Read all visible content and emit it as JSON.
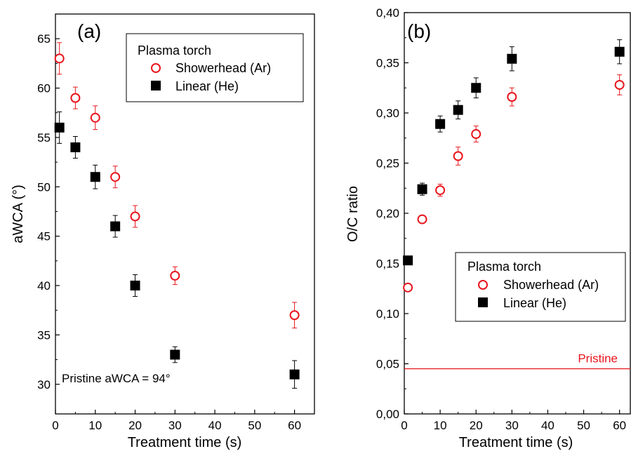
{
  "chart_data": [
    {
      "panel_label": "(a)",
      "type": "scatter",
      "xlabel": "Treatment time (s)",
      "ylabel": "aWCA (°)",
      "xlim": [
        0,
        65
      ],
      "ylim": [
        27,
        67.5
      ],
      "xticks": [
        "0",
        "10",
        "20",
        "30",
        "40",
        "50",
        "60"
      ],
      "yticks": [
        "30",
        "35",
        "40",
        "45",
        "50",
        "55",
        "60",
        "65"
      ],
      "legend": {
        "title": "Plasma torch",
        "position": "top-right",
        "entries": [
          "Showerhead (Ar)",
          "Linear (He)"
        ]
      },
      "annotation": "Pristine aWCA = 94°",
      "series": [
        {
          "name": "Showerhead (Ar)",
          "marker": "open-circle",
          "color": "#e8161d",
          "x": [
            1,
            5,
            10,
            15,
            20,
            30,
            60
          ],
          "y": [
            63,
            59,
            57,
            51,
            47,
            41,
            37
          ],
          "err": [
            1.6,
            1.1,
            1.2,
            1.1,
            1.1,
            0.9,
            1.3
          ]
        },
        {
          "name": "Linear (He)",
          "marker": "filled-square",
          "color": "#000000",
          "x": [
            1,
            5,
            10,
            15,
            20,
            30,
            60
          ],
          "y": [
            56,
            54,
            51,
            46,
            40,
            33,
            31
          ],
          "err": [
            1.6,
            1.1,
            1.2,
            1.1,
            1.1,
            0.8,
            1.4
          ]
        }
      ]
    },
    {
      "panel_label": "(b)",
      "type": "scatter",
      "xlabel": "Treatment time (s)",
      "ylabel": "O/C ratio",
      "xlim": [
        0,
        63
      ],
      "ylim": [
        0,
        0.4
      ],
      "xticks": [
        "0",
        "10",
        "20",
        "30",
        "40",
        "50",
        "60"
      ],
      "yticks": [
        "0,00",
        "0,05",
        "0,10",
        "0,15",
        "0,20",
        "0,25",
        "0,30",
        "0,35",
        "0,40"
      ],
      "legend": {
        "title": "Plasma torch",
        "position": "center-right",
        "entries": [
          "Showerhead (Ar)",
          "Linear (He)"
        ]
      },
      "reference_line": {
        "label": "Pristine",
        "value": 0.045,
        "color": "#e8161d"
      },
      "series": [
        {
          "name": "Showerhead (Ar)",
          "marker": "open-circle",
          "color": "#e8161d",
          "x": [
            1,
            5,
            10,
            15,
            20,
            30,
            60
          ],
          "y": [
            0.126,
            0.194,
            0.223,
            0.257,
            0.279,
            0.316,
            0.328
          ],
          "err": [
            0.0,
            0.0,
            0.006,
            0.009,
            0.008,
            0.009,
            0.01
          ]
        },
        {
          "name": "Linear (He)",
          "marker": "filled-square",
          "color": "#000000",
          "x": [
            1,
            5,
            10,
            15,
            20,
            30,
            60
          ],
          "y": [
            0.153,
            0.224,
            0.289,
            0.303,
            0.325,
            0.354,
            0.361
          ],
          "err": [
            0.0,
            0.006,
            0.008,
            0.009,
            0.01,
            0.012,
            0.012
          ]
        }
      ]
    }
  ]
}
